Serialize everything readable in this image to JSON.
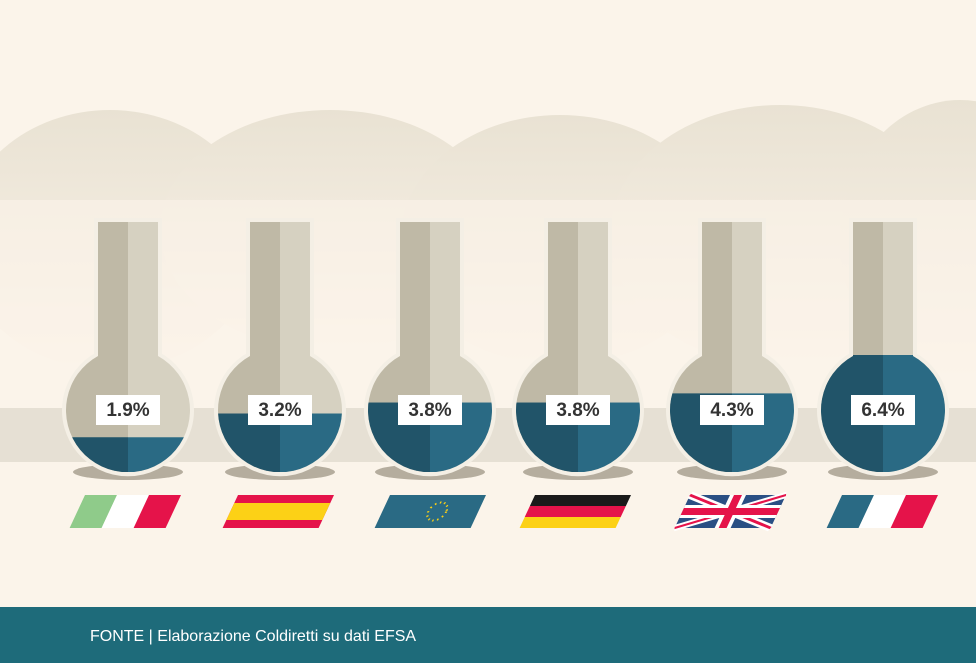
{
  "chart_data": {
    "type": "flask",
    "values": [
      1.9,
      3.2,
      3.8,
      3.8,
      4.3,
      6.4
    ],
    "value_labels": [
      "1.9%",
      "3.2%",
      "3.8%",
      "3.8%",
      "4.3%",
      "6.4%"
    ],
    "color": "#2a6a84",
    "source": "FONTE | Elaborazione Coldiretti su dati EFSA"
  }
}
